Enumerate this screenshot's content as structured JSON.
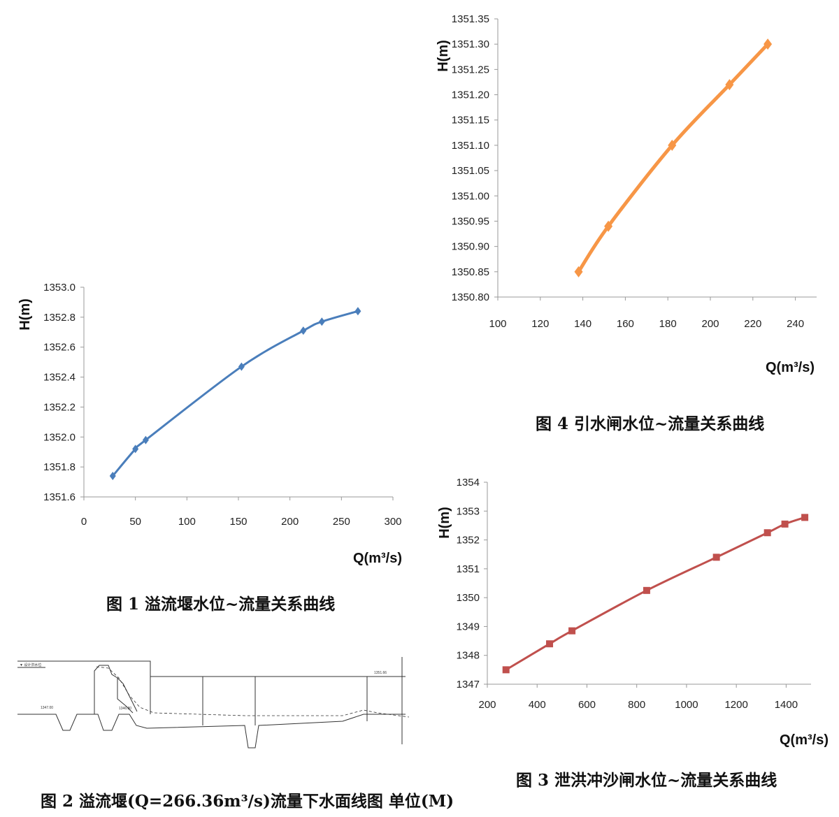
{
  "chart_data": [
    {
      "id": "fig1",
      "type": "line",
      "caption": "图 1  溢流堰水位~流量关系曲线",
      "xlabel": "Q(m³/s)",
      "ylabel": "H(m)",
      "xlim": [
        0,
        300
      ],
      "ylim": [
        1351.6,
        1353.0
      ],
      "xticks": [
        "0",
        "50",
        "100",
        "150",
        "200",
        "250",
        "300"
      ],
      "yticks": [
        "1351.6",
        "1351.8",
        "1352.0",
        "1352.2",
        "1352.4",
        "1352.6",
        "1352.8",
        "1353.0"
      ],
      "color": "#4a7ebb",
      "marker": "diamond",
      "series": [
        {
          "x": [
            28,
            50,
            60,
            153,
            213,
            231,
            266
          ],
          "y": [
            1351.74,
            1351.92,
            1351.98,
            1352.47,
            1352.71,
            1352.77,
            1352.84
          ]
        }
      ]
    },
    {
      "id": "fig4",
      "type": "line",
      "caption": "图 4  引水闸水位~流量关系曲线",
      "xlabel": "Q(m³/s)",
      "ylabel": "H(m)",
      "xlim": [
        100,
        250
      ],
      "ylim": [
        1350.8,
        1351.35
      ],
      "xticks": [
        "100",
        "120",
        "140",
        "160",
        "180",
        "200",
        "220",
        "240"
      ],
      "yticks": [
        "1350.80",
        "1350.85",
        "1350.90",
        "1350.95",
        "1351.00",
        "1351.05",
        "1351.10",
        "1351.15",
        "1351.20",
        "1351.25",
        "1351.30",
        "1351.35"
      ],
      "color": "#f79646",
      "marker": "diamond",
      "series": [
        {
          "x": [
            138,
            152,
            182,
            209,
            227
          ],
          "y": [
            1350.85,
            1350.94,
            1351.1,
            1351.22,
            1351.3
          ]
        }
      ]
    },
    {
      "id": "fig3",
      "type": "line",
      "caption": "图 3  泄洪冲沙闸水位~流量关系曲线",
      "xlabel": "Q(m³/s)",
      "ylabel": "H(m)",
      "xlim": [
        200,
        1500
      ],
      "ylim": [
        1347,
        1354
      ],
      "xticks": [
        "200",
        "400",
        "600",
        "800",
        "1000",
        "1200",
        "1400"
      ],
      "yticks": [
        "1347",
        "1348",
        "1349",
        "1350",
        "1351",
        "1352",
        "1353",
        "1354"
      ],
      "color": "#c0504d",
      "marker": "square",
      "series": [
        {
          "x": [
            275,
            450,
            540,
            840,
            1120,
            1325,
            1395,
            1475
          ],
          "y": [
            1347.5,
            1348.4,
            1348.85,
            1350.25,
            1351.4,
            1352.25,
            1352.55,
            1352.78
          ]
        }
      ]
    }
  ],
  "fig2": {
    "caption": "图 2  溢流堰(Q=266.36m³/s)流量下水面线图 单位(M)",
    "labels": [
      "1351.66",
      "1347.00",
      "1346.80"
    ]
  }
}
